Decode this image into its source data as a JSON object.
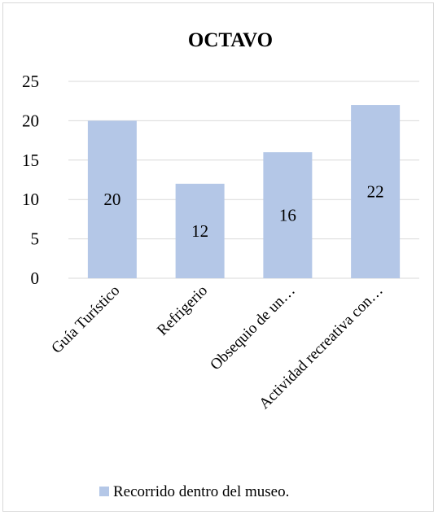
{
  "chart_data": {
    "type": "bar",
    "title": "OCTAVO",
    "categories": [
      "Guía Turístico",
      "Refrigerio",
      "Obsequio de un…",
      "Actividad recreativa con…"
    ],
    "series": [
      {
        "name": "Recorrido dentro del museo.",
        "values": [
          20,
          12,
          16,
          22
        ],
        "color": "#b4c7e7"
      }
    ],
    "yticks": [
      0,
      5,
      10,
      15,
      20,
      25
    ],
    "ylim": [
      0,
      25
    ],
    "grid": true,
    "legend": "bottom"
  }
}
